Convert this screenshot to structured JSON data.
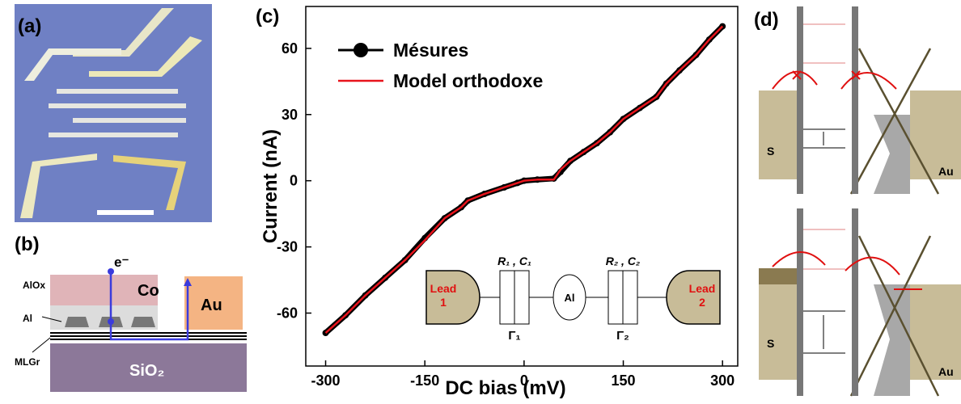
{
  "panels": {
    "a": "(a)",
    "b": "(b)",
    "c": "(c)",
    "d": "(d)"
  },
  "stack": {
    "alox": "AlOx",
    "al": "Al",
    "mlgr": "MLGr",
    "electron": "e⁻",
    "co": "Co",
    "au": "Au",
    "substrate": "SiO₂"
  },
  "chart_data": {
    "type": "line",
    "x_label": "DC bias (mV)",
    "y_label": "Current (nA)",
    "x": [
      -300,
      -270,
      -240,
      -210,
      -180,
      -150,
      -120,
      -95,
      -85,
      -60,
      -30,
      -10,
      0,
      20,
      45,
      55,
      70,
      90,
      110,
      130,
      150,
      175,
      200,
      215,
      235,
      260,
      280,
      300
    ],
    "series": [
      {
        "name": "Mésures",
        "color": "#000000",
        "values": [
          -69,
          -61,
          -52,
          -44,
          -36,
          -26,
          -17,
          -12,
          -9,
          -6,
          -3,
          -1,
          0,
          0.5,
          1,
          4,
          9,
          13,
          17,
          22,
          28,
          33,
          38,
          44,
          50,
          57,
          64,
          70
        ]
      },
      {
        "name": "Model orthodoxe",
        "color": "#e8141c",
        "values": [
          -69,
          -61,
          -52,
          -44,
          -36,
          -27,
          -17,
          -12,
          -9,
          -6,
          -3,
          -1,
          0,
          0.5,
          0.5,
          5,
          9,
          13,
          17,
          22,
          28,
          33,
          38,
          44,
          50,
          57,
          64,
          70
        ]
      }
    ],
    "xlim": [
      -330,
      323
    ],
    "ylim": [
      -84,
      79
    ],
    "xticks": [
      -300,
      -150,
      0,
      150,
      300
    ],
    "yticks": [
      -60,
      -30,
      0,
      30,
      60
    ],
    "legend": "upper left",
    "circuit": {
      "lead1": [
        "Lead",
        "1"
      ],
      "rc1": "R₁ , C₁",
      "gamma1": "Γ₁",
      "island": "Al",
      "rc2": "R₂ , C₂",
      "gamma2": "Γ₂",
      "lead2": [
        "Lead",
        "2"
      ]
    }
  },
  "band_diagrams": [
    {
      "lead": "S",
      "contact": "Au"
    },
    {
      "lead": "S",
      "contact": "Au"
    }
  ]
}
